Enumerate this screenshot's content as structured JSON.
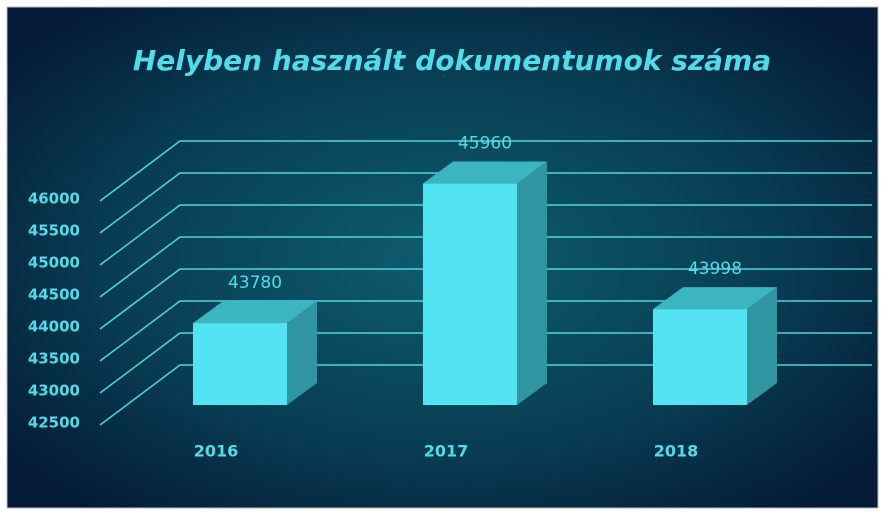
{
  "chart_data": {
    "type": "bar",
    "title": "Helyben használt dokumentumok száma",
    "categories": [
      "2016",
      "2017",
      "2018"
    ],
    "values": [
      43780,
      45960,
      43998
    ],
    "color": "#52e4f2",
    "ylim": [
      42500,
      46000
    ],
    "yticks": [
      42500,
      43000,
      43500,
      44000,
      44500,
      45000,
      45500,
      46000
    ],
    "grid": true
  }
}
